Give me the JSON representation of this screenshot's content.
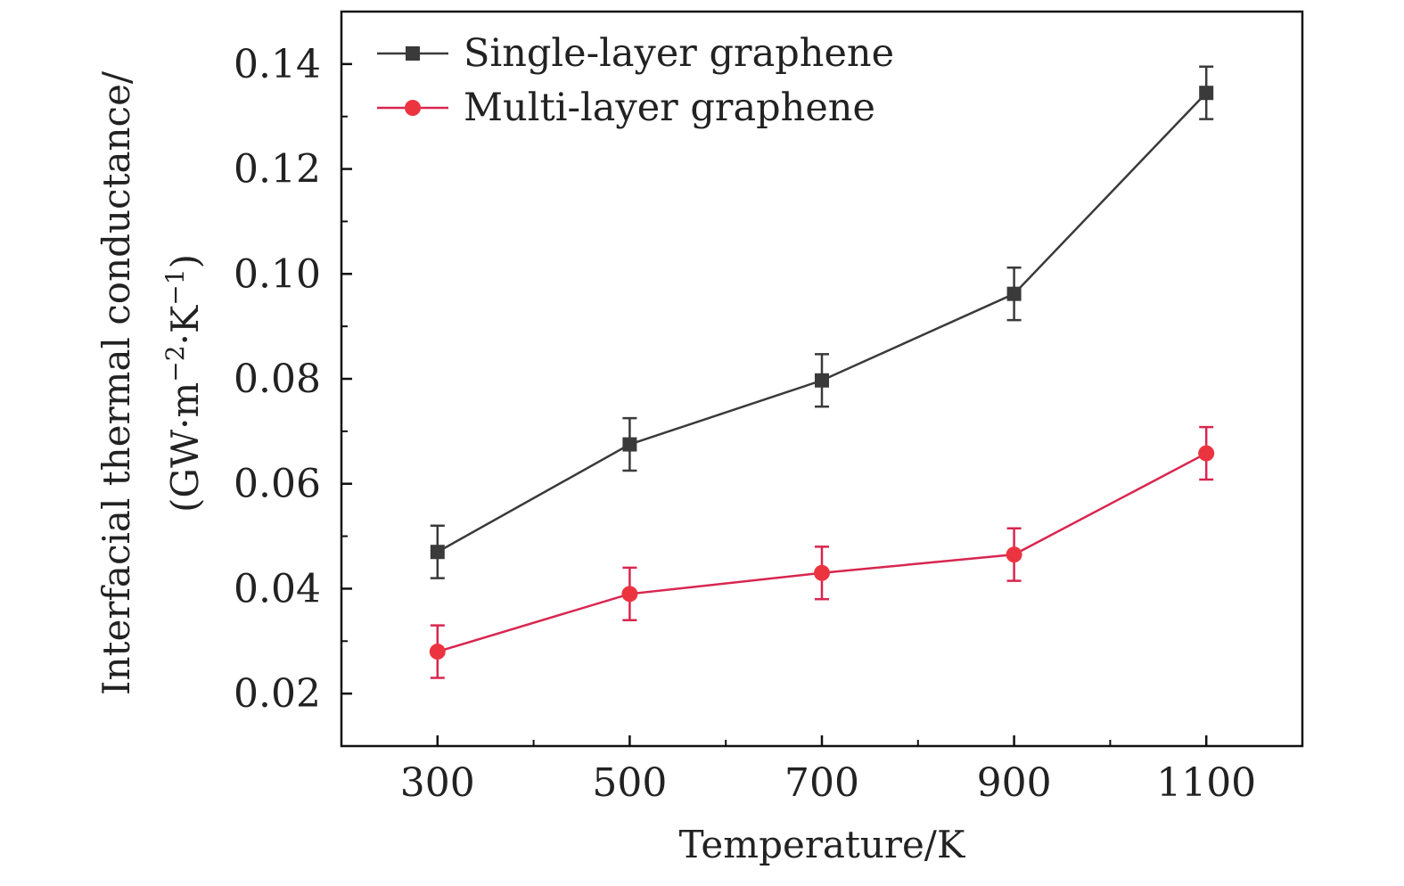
{
  "chart_data": {
    "type": "line",
    "title": "",
    "xlabel": "Temperature/K",
    "ylabel_line1": "Interfacial thermal conductance/",
    "ylabel_line2_main": "(GW·m",
    "ylabel_line2_exp1": "−2",
    "ylabel_line2_mid": "·K",
    "ylabel_line2_exp2": "−1",
    "ylabel_line2_end": ")",
    "xlim": [
      200,
      1200
    ],
    "ylim": [
      0.01,
      0.15
    ],
    "xticks": [
      300,
      500,
      700,
      900,
      1100
    ],
    "xticklabels": [
      "300",
      "500",
      "700",
      "900",
      "1100"
    ],
    "xminor": [
      400,
      600,
      800,
      1000
    ],
    "yticks": [
      0.02,
      0.04,
      0.06,
      0.08,
      0.1,
      0.12,
      0.14
    ],
    "yticklabels": [
      "0.02",
      "0.04",
      "0.06",
      "0.08",
      "0.10",
      "0.12",
      "0.14"
    ],
    "yminor": [
      0.01,
      0.03,
      0.05,
      0.07,
      0.09,
      0.11,
      0.13
    ],
    "x": [
      300,
      500,
      700,
      900,
      1100
    ],
    "legend_position": "top-left",
    "series": [
      {
        "name": "Single-layer graphene",
        "marker": "square",
        "color": "#3a3a3a",
        "values": [
          0.047,
          0.0675,
          0.0797,
          0.0962,
          0.1345
        ],
        "errors": [
          0.005,
          0.005,
          0.005,
          0.005,
          0.005
        ]
      },
      {
        "name": "Multi-layer graphene",
        "marker": "circle",
        "color": "#ec3440",
        "line_color": "#d8264f",
        "values": [
          0.028,
          0.039,
          0.043,
          0.0465,
          0.0658
        ],
        "errors": [
          0.005,
          0.005,
          0.005,
          0.005,
          0.005
        ]
      }
    ]
  }
}
